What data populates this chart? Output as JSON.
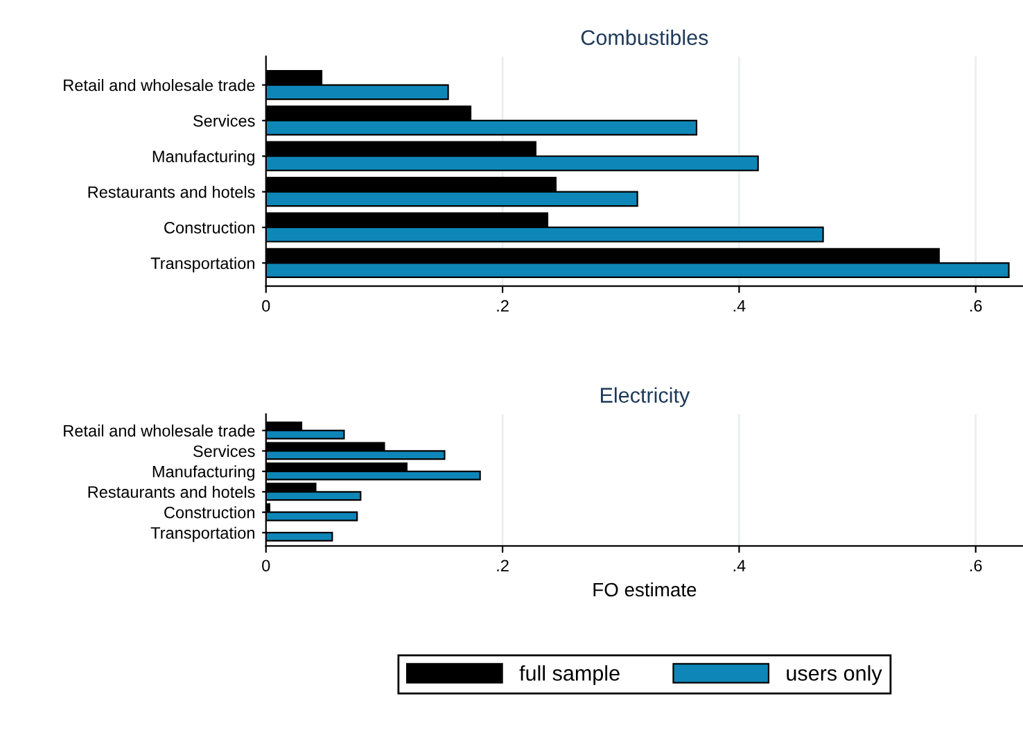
{
  "chart_data": [
    {
      "type": "bar",
      "orientation": "horizontal",
      "title": "Combustibles",
      "categories": [
        "Retail and wholesale trade",
        "Services",
        "Manufacturing",
        "Restaurants and hotels",
        "Construction",
        "Transportation"
      ],
      "series": [
        {
          "color": "#000000",
          "values": [
            0.047,
            0.173,
            0.228,
            0.245,
            0.238,
            0.569
          ]
        },
        {
          "color": "#0e87b8",
          "values": [
            0.154,
            0.364,
            0.416,
            0.314,
            0.471,
            0.628
          ]
        }
      ],
      "xlim": [
        0,
        0.64
      ],
      "xticks": [
        0,
        {
          "value": 0.2,
          "label": ".2"
        },
        {
          "value": 0.4,
          "label": ".4"
        },
        {
          "value": 0.6,
          "label": ".6"
        }
      ],
      "grid": "x"
    },
    {
      "type": "bar",
      "orientation": "horizontal",
      "title": "Electricity",
      "xlabel": "FO estimate",
      "categories": [
        "Retail and wholesale trade",
        "Services",
        "Manufacturing",
        "Restaurants and hotels",
        "Construction",
        "Transportation"
      ],
      "series": [
        {
          "name": "full sample",
          "color": "#000000",
          "values": [
            0.03,
            0.1,
            0.119,
            0.042,
            0.003,
            null
          ]
        },
        {
          "name": "users only",
          "color": "#0e87b8",
          "values": [
            0.066,
            0.151,
            0.181,
            0.08,
            0.077,
            0.056
          ]
        }
      ],
      "xlim": [
        0,
        0.64
      ],
      "xticks": [
        0,
        {
          "value": 0.2,
          "label": ".2"
        },
        {
          "value": 0.4,
          "label": ".4"
        },
        {
          "value": 0.6,
          "label": ".6"
        }
      ],
      "grid": "x",
      "legend": "bottom"
    }
  ]
}
